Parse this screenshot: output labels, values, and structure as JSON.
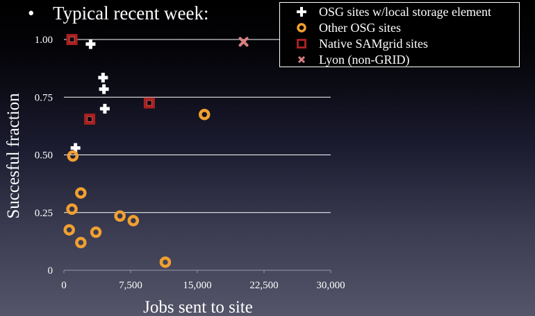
{
  "bullet_text": "Typical recent week:",
  "chart_data": {
    "type": "scatter",
    "title": "",
    "xlabel": "Jobs sent to site",
    "ylabel": "Succesful fraction",
    "xlim": [
      0,
      30000
    ],
    "ylim": [
      0,
      1.0
    ],
    "x_ticks": [
      0,
      7500,
      15000,
      22500,
      30000
    ],
    "x_tick_labels": [
      "0",
      "7,500",
      "15,000",
      "22,500",
      "30,000"
    ],
    "y_ticks": [
      0,
      0.25,
      0.5,
      0.75,
      1.0
    ],
    "y_tick_labels": [
      "0",
      "0.25",
      "0.50",
      "0.75",
      "1.00"
    ],
    "grid": "horizontal",
    "legend": "top-right",
    "series": [
      {
        "name": "OSG sites w/local storage element",
        "marker": "plus",
        "color": "#ffffff",
        "points": [
          [
            3000,
            0.98
          ],
          [
            4400,
            0.835
          ],
          [
            4500,
            0.785
          ],
          [
            4600,
            0.7
          ],
          [
            1300,
            0.53
          ]
        ]
      },
      {
        "name": "Other OSG sites",
        "marker": "ring",
        "color": "#f0a030",
        "points": [
          [
            15800,
            0.675
          ],
          [
            1000,
            0.495
          ],
          [
            1900,
            0.335
          ],
          [
            900,
            0.265
          ],
          [
            6300,
            0.235
          ],
          [
            7800,
            0.215
          ],
          [
            600,
            0.175
          ],
          [
            3600,
            0.165
          ],
          [
            1900,
            0.12
          ],
          [
            11400,
            0.035
          ]
        ]
      },
      {
        "name": "Native SAMgrid sites",
        "marker": "square",
        "color": "#a82020",
        "points": [
          [
            900,
            1.0
          ],
          [
            2900,
            0.655
          ],
          [
            9600,
            0.725
          ]
        ]
      },
      {
        "name": "Lyon (non-GRID)",
        "marker": "x",
        "color": "#d88080",
        "points": [
          [
            20200,
            0.99
          ]
        ]
      }
    ]
  }
}
